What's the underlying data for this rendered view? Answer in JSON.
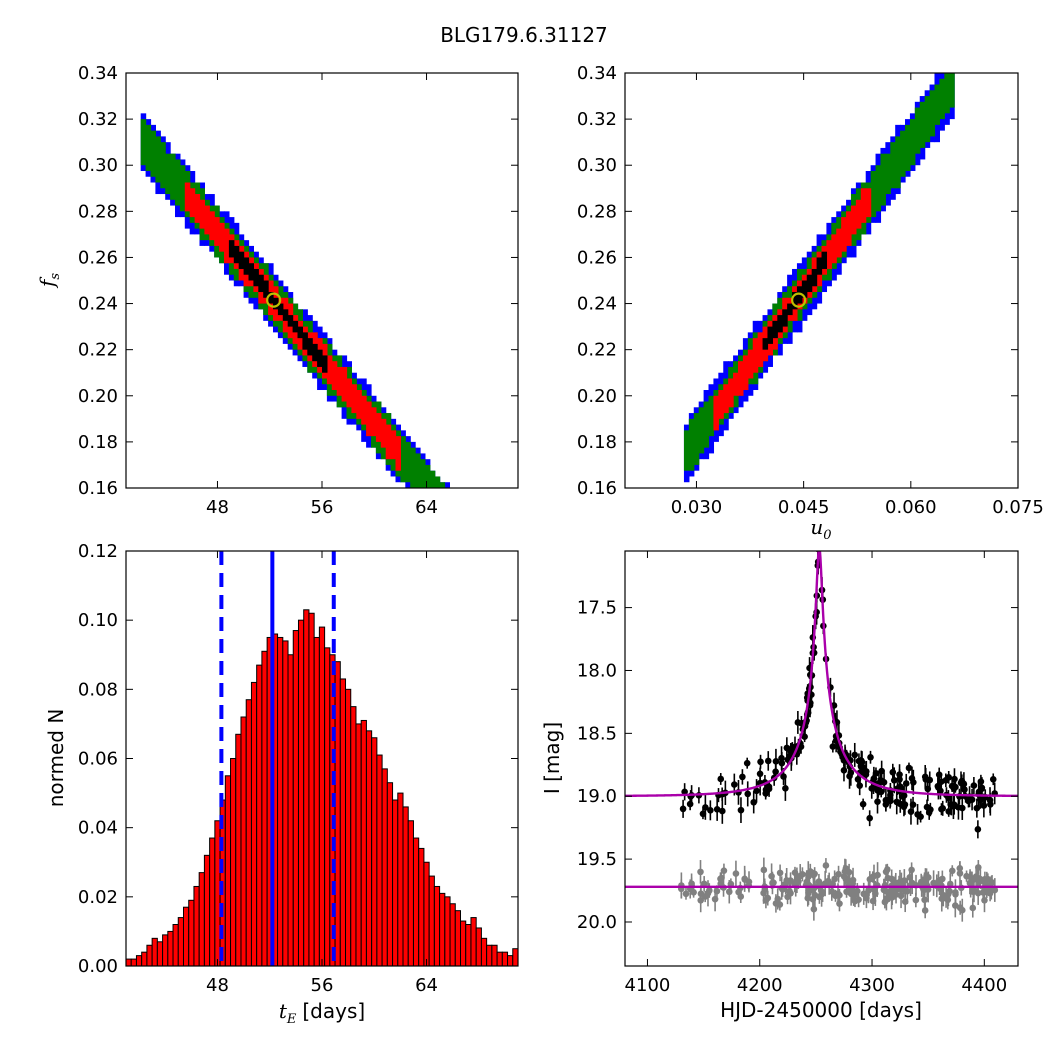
{
  "figure": {
    "title": "BLG179.6.31127"
  },
  "chart_data": [
    {
      "id": "panel-ts-vs-fs",
      "type": "heatmap",
      "xlabel": "",
      "ylabel": "f_s",
      "ylabel_main": "f",
      "ylabel_sub": "s",
      "xlim": [
        41,
        71
      ],
      "ylim": [
        0.16,
        0.34
      ],
      "xticks": [
        48,
        56,
        64
      ],
      "yticks": [
        0.16,
        0.18,
        0.2,
        0.22,
        0.24,
        0.26,
        0.28,
        0.3,
        0.32,
        0.34
      ],
      "ytick_labels": [
        "0.16",
        "0.18",
        "0.20",
        "0.22",
        "0.24",
        "0.26",
        "0.28",
        "0.30",
        "0.32",
        "0.34"
      ],
      "relation": {
        "slope": -0.0069,
        "intercept": 0.6007
      },
      "x_range": [
        42,
        68
      ],
      "bands": [
        {
          "name": "outer",
          "color": "#0000ff",
          "halfwidth": 0.011
        },
        {
          "name": "2-sigma",
          "color": "#008000",
          "halfwidth": 0.0085
        },
        {
          "name": "1-sigma",
          "color": "#ff0000",
          "halfwidth": 0.0055,
          "x_range": [
            45.5,
            62
          ]
        },
        {
          "name": "core",
          "color": "#000000",
          "halfwidth": 0.0022,
          "x_range": [
            49,
            56.5
          ]
        }
      ],
      "best_fit": {
        "x": 52.3,
        "y": 0.2415,
        "color": "#bfbf00"
      }
    },
    {
      "id": "panel-u0-vs-fs",
      "type": "heatmap",
      "xlabel": "u_0",
      "xlabel_main": "u",
      "xlabel_sub": "0",
      "ylabel": "",
      "xlim": [
        0.02,
        0.075
      ],
      "ylim": [
        0.16,
        0.34
      ],
      "xticks": [
        0.03,
        0.045,
        0.06,
        0.075
      ],
      "xtick_labels": [
        "0.030",
        "0.045",
        "0.060",
        "0.075"
      ],
      "yticks": [
        0.16,
        0.18,
        0.2,
        0.22,
        0.24,
        0.26,
        0.28,
        0.3,
        0.32,
        0.34
      ],
      "ytick_labels": [
        "0.16",
        "0.18",
        "0.20",
        "0.22",
        "0.24",
        "0.26",
        "0.28",
        "0.30",
        "0.32",
        "0.34"
      ],
      "relation": {
        "slope": 4.28,
        "intercept": 0.052
      },
      "x_range": [
        0.0285,
        0.066
      ],
      "bands": [
        {
          "name": "outer",
          "color": "#0000ff",
          "halfwidth": 0.012
        },
        {
          "name": "2-sigma",
          "color": "#008000",
          "halfwidth": 0.0085
        },
        {
          "name": "1-sigma",
          "color": "#ff0000",
          "halfwidth": 0.0055,
          "x_range": [
            0.0325,
            0.0545
          ]
        },
        {
          "name": "core",
          "color": "#000000",
          "halfwidth": 0.0022,
          "x_range": [
            0.0395,
            0.048
          ]
        }
      ],
      "best_fit": {
        "x": 0.0443,
        "y": 0.2415,
        "color": "#bfbf00"
      }
    },
    {
      "id": "panel-te-histogram",
      "type": "bar",
      "xlabel": "t_E [days]",
      "xlabel_main": "t",
      "xlabel_sub": "E",
      "xlabel_units": "[days]",
      "ylabel": "normed N",
      "xlim": [
        41,
        71
      ],
      "ylim": [
        0,
        0.12
      ],
      "xticks": [
        48,
        56,
        64
      ],
      "yticks": [
        0,
        0.02,
        0.04,
        0.06,
        0.08,
        0.1,
        0.12
      ],
      "ytick_labels": [
        "0.00",
        "0.02",
        "0.04",
        "0.06",
        "0.08",
        "0.10",
        "0.12"
      ],
      "bin_start": 41.0,
      "bin_width": 0.4,
      "values": [
        0.002,
        0.002,
        0.003,
        0.004,
        0.006,
        0.008,
        0.007,
        0.009,
        0.01,
        0.012,
        0.014,
        0.017,
        0.019,
        0.023,
        0.027,
        0.032,
        0.037,
        0.042,
        0.048,
        0.055,
        0.06,
        0.067,
        0.072,
        0.077,
        0.082,
        0.087,
        0.091,
        0.095,
        0.096,
        0.095,
        0.094,
        0.09,
        0.097,
        0.1,
        0.103,
        0.102,
        0.095,
        0.098,
        0.092,
        0.09,
        0.088,
        0.083,
        0.08,
        0.075,
        0.07,
        0.071,
        0.068,
        0.066,
        0.061,
        0.057,
        0.053,
        0.048,
        0.05,
        0.046,
        0.042,
        0.037,
        0.034,
        0.03,
        0.026,
        0.023,
        0.021,
        0.02,
        0.018,
        0.016,
        0.013,
        0.012,
        0.014,
        0.011,
        0.008,
        0.006,
        0.006,
        0.004,
        0.004,
        0.003,
        0.005,
        0.004,
        0.002,
        0.001,
        0.0005,
        0.0005
      ],
      "bar_color": "#ff0000",
      "vlines": [
        {
          "x": 52.2,
          "style": "solid",
          "color": "#0000ff"
        },
        {
          "x": 48.3,
          "style": "dashed",
          "color": "#0000ff"
        },
        {
          "x": 56.9,
          "style": "dashed",
          "color": "#0000ff"
        }
      ]
    },
    {
      "id": "panel-lightcurve",
      "type": "scatter",
      "xlabel": "HJD-2450000 [days]",
      "ylabel": "I [mag]",
      "xlim": [
        4080,
        4430
      ],
      "ylim": [
        20.35,
        17.05
      ],
      "inverted_y": true,
      "xticks": [
        4100,
        4200,
        4300,
        4400
      ],
      "xtick_labels": [
        "4100",
        "4200",
        "4300",
        "4400"
      ],
      "yticks": [
        17.5,
        18.0,
        18.5,
        19.0,
        19.5,
        20.0
      ],
      "ytick_labels": [
        "17.5",
        "18.0",
        "18.5",
        "19.0",
        "19.5",
        "20.0"
      ],
      "model": {
        "t0": 4253,
        "tE": 52.2,
        "u0": 0.0443,
        "fs": 0.2415,
        "baseline": 19.0,
        "color": "#aa00aa"
      },
      "residual_baseline": {
        "value": 19.72,
        "color": "#aa00aa"
      },
      "series": [
        {
          "name": "",
          "color": "#000000",
          "offset": 0.0,
          "n": 230,
          "range": [
            4130,
            4410
          ],
          "scatter": 0.09,
          "err": 0.07
        },
        {
          "name": "",
          "color": "#808080",
          "offset": 0.72,
          "n": 230,
          "range": [
            4130,
            4410
          ],
          "scatter": 0.07,
          "err": 0.07,
          "flat": true
        }
      ]
    }
  ]
}
